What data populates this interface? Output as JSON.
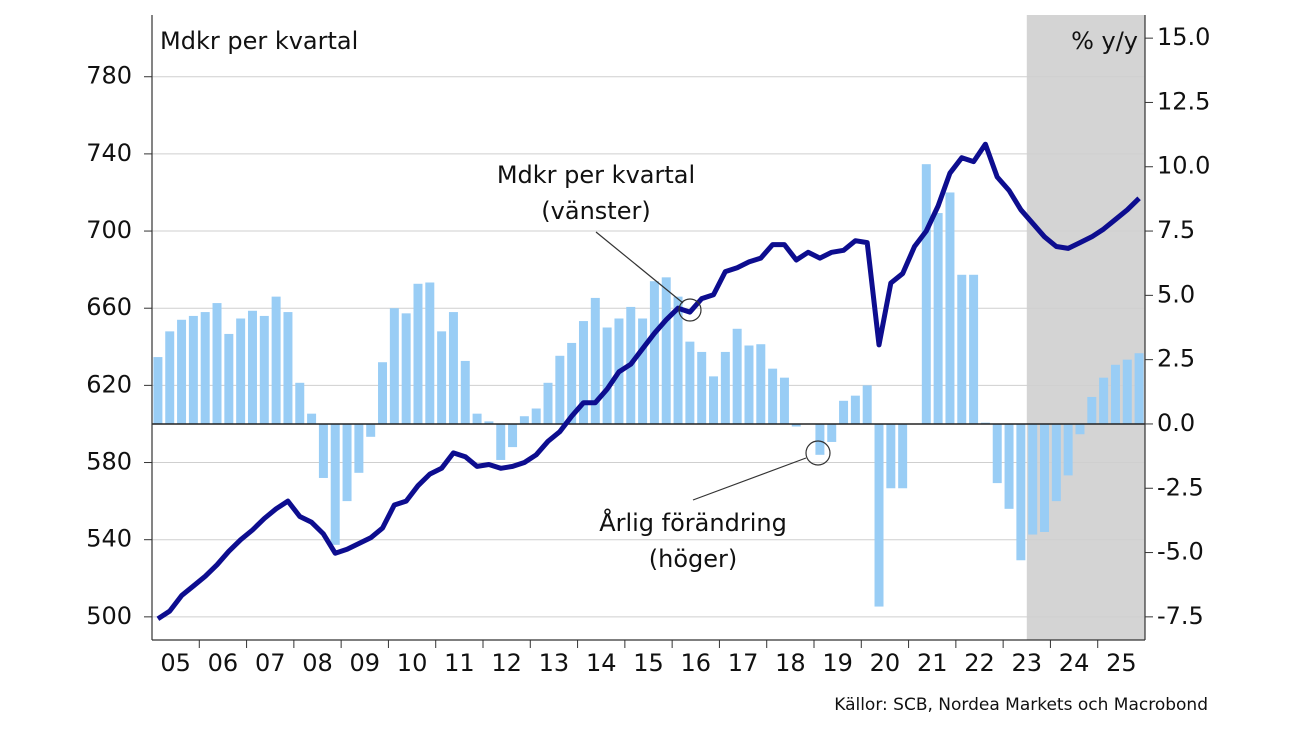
{
  "chart_data": {
    "type": "bar-line",
    "y_label": "Mdkr per kvartal",
    "y2_label": "% y/y",
    "source": "Källor: SCB, Nordea Markets och Macrobond",
    "categories": [
      "05",
      null,
      null,
      null,
      "06",
      null,
      null,
      null,
      "07",
      null,
      null,
      null,
      "08",
      null,
      null,
      null,
      "09",
      null,
      null,
      null,
      "10",
      null,
      null,
      null,
      "11",
      null,
      null,
      null,
      "12",
      null,
      null,
      null,
      "13",
      null,
      null,
      null,
      "14",
      null,
      null,
      null,
      "15",
      null,
      null,
      null,
      "16",
      null,
      null,
      null,
      "17",
      null,
      null,
      null,
      "18",
      null,
      null,
      null,
      "19",
      null,
      null,
      null,
      "20",
      null,
      null,
      null,
      "21",
      null,
      null,
      null,
      "22",
      null,
      null,
      null,
      "23",
      null,
      null,
      null,
      "24",
      null,
      null,
      null,
      "25",
      null,
      null,
      null
    ],
    "series": [
      {
        "name": "Årlig förändring",
        "note": "(höger)",
        "type": "bar",
        "axis": "y2",
        "color": "#99cdf5",
        "values": [
          2.6,
          3.6,
          4.05,
          4.2,
          4.35,
          4.7,
          3.5,
          4.1,
          4.4,
          4.2,
          4.95,
          4.35,
          1.6,
          0.4,
          -2.1,
          -4.7,
          -3.0,
          -1.9,
          -0.5,
          2.4,
          4.5,
          4.3,
          5.45,
          5.5,
          3.6,
          4.35,
          2.45,
          0.4,
          0.1,
          -1.4,
          -0.9,
          0.3,
          0.6,
          1.6,
          2.65,
          3.15,
          4.0,
          4.9,
          3.75,
          4.1,
          4.55,
          4.1,
          5.55,
          5.7,
          4.95,
          3.2,
          2.8,
          1.85,
          2.8,
          3.7,
          3.05,
          3.1,
          2.15,
          1.8,
          -0.1,
          0.0,
          -1.2,
          -0.7,
          0.9,
          1.1,
          1.5,
          -7.1,
          -2.5,
          -2.5,
          0.0,
          10.1,
          8.2,
          9.0,
          5.8,
          5.8,
          0.05,
          -2.3,
          -3.3,
          -5.3,
          -4.3,
          -4.2,
          -3.0,
          -2.0,
          -0.4,
          1.05,
          1.8,
          2.3,
          2.5,
          2.75
        ]
      },
      {
        "name": "Mdkr per kvartal",
        "note": "(vänster)",
        "type": "line",
        "axis": "y",
        "color": "#0d0d8f",
        "values": [
          499,
          503,
          511,
          516,
          521,
          527,
          534,
          540,
          545,
          551,
          556,
          560,
          552,
          549,
          543,
          533,
          535,
          538,
          541,
          546,
          558,
          560,
          568,
          574,
          577,
          585,
          583,
          578,
          579,
          577,
          578,
          580,
          584,
          591,
          596,
          604,
          611,
          611,
          618,
          627,
          631,
          639,
          647,
          654,
          660,
          658,
          665,
          667,
          679,
          681,
          684,
          686,
          693,
          693,
          685,
          689,
          686,
          689,
          690,
          695,
          694,
          641,
          673,
          678,
          692,
          700,
          713,
          730,
          738,
          736,
          745,
          728,
          721,
          711,
          704,
          697,
          692,
          691,
          694,
          697,
          701,
          706,
          711,
          717
        ]
      }
    ],
    "ylim": [
      488,
      812
    ],
    "yticks": [
      500,
      540,
      580,
      620,
      660,
      700,
      740,
      780
    ],
    "y2lim": [
      -8.4,
      15.9
    ],
    "y2ticks": [
      -7.5,
      {
        "value": -5,
        "label": "-5.0"
      },
      -2.5,
      {
        "value": 0,
        "label": "0.0"
      },
      2.5,
      {
        "value": 5,
        "label": "5.0"
      },
      7.5,
      {
        "value": 10,
        "label": "10.0"
      },
      12.5,
      {
        "value": 15,
        "label": "15.0"
      }
    ],
    "grid": true,
    "shaded_from": 74,
    "shade_color": "#d4d4d4"
  }
}
